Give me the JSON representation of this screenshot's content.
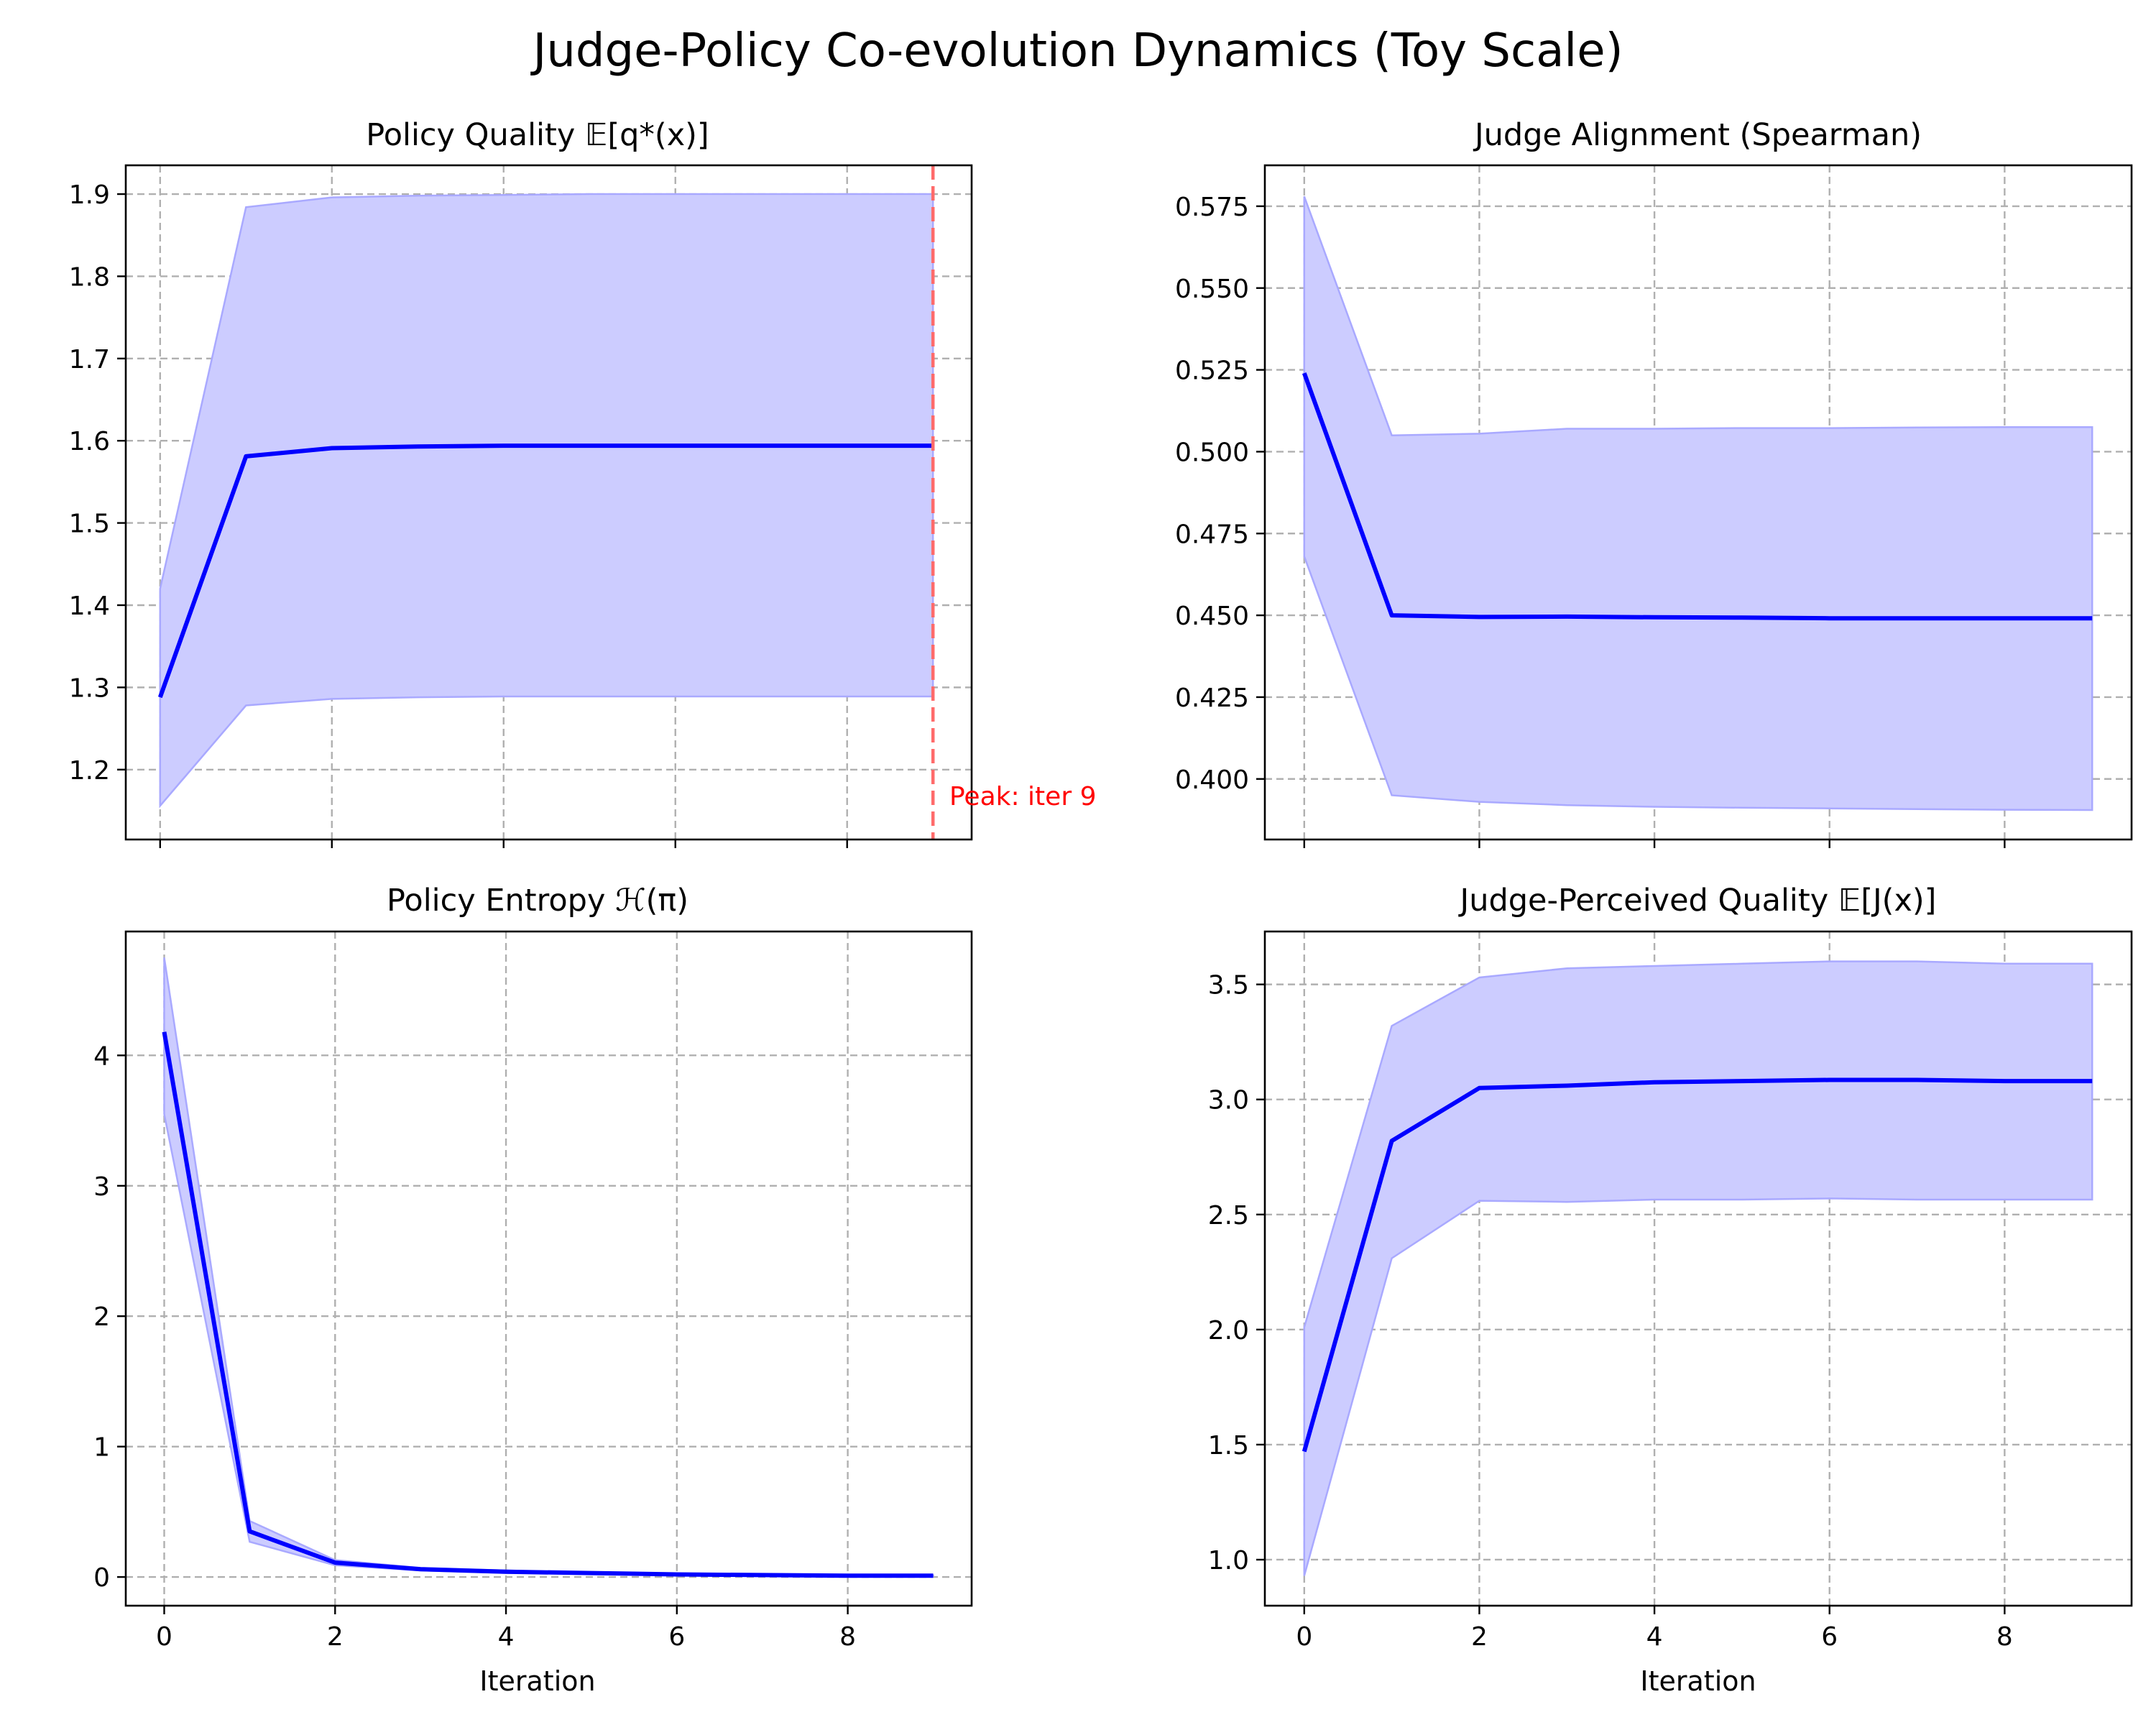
{
  "figure": {
    "suptitle": "Judge-Policy Co-evolution Dynamics (Toy Scale)",
    "colors": {
      "line": "#0000ff",
      "band_fill": "#ccccff",
      "band_edge": "#a9a9ff",
      "peak": "#ff0000"
    }
  },
  "chart_data": [
    {
      "type": "line",
      "title_text": "Policy Quality ",
      "title_math": "𝔼[q*(x)]",
      "xlabel": "",
      "ylabel": "",
      "x": [
        0,
        1,
        2,
        3,
        4,
        5,
        6,
        7,
        8,
        9
      ],
      "xlim": [
        -0.4,
        9.45
      ],
      "ylim": [
        1.115,
        1.935
      ],
      "xticks": [
        0,
        2,
        4,
        6,
        8
      ],
      "show_xtick_labels": false,
      "yticks": [
        1.2,
        1.3,
        1.4,
        1.5,
        1.6,
        1.7,
        1.8,
        1.9
      ],
      "ytick_labels": [
        "1.2",
        "1.3",
        "1.4",
        "1.5",
        "1.6",
        "1.7",
        "1.8",
        "1.9"
      ],
      "grid": true,
      "series": [
        {
          "mean": [
            1.288,
            1.581,
            1.591,
            1.593,
            1.594,
            1.594,
            1.594,
            1.594,
            1.594,
            1.594
          ],
          "upper": [
            1.42,
            1.884,
            1.896,
            1.898,
            1.899,
            1.9,
            1.9,
            1.9,
            1.9,
            1.9
          ],
          "lower": [
            1.156,
            1.278,
            1.286,
            1.288,
            1.289,
            1.289,
            1.289,
            1.289,
            1.289,
            1.289
          ]
        }
      ],
      "annotation": {
        "text": "Peak: iter 9",
        "x": 9
      }
    },
    {
      "type": "line",
      "title_text": "Judge Alignment (Spearman)",
      "title_math": "",
      "xlabel": "",
      "ylabel": "",
      "x": [
        0,
        1,
        2,
        3,
        4,
        5,
        6,
        7,
        8,
        9
      ],
      "xlim": [
        -0.45,
        9.45
      ],
      "ylim": [
        0.3815,
        0.5875
      ],
      "xticks": [
        0,
        2,
        4,
        6,
        8
      ],
      "show_xtick_labels": false,
      "yticks": [
        0.4,
        0.425,
        0.45,
        0.475,
        0.5,
        0.525,
        0.55,
        0.575
      ],
      "ytick_labels": [
        "0.400",
        "0.425",
        "0.450",
        "0.475",
        "0.500",
        "0.525",
        "0.550",
        "0.575"
      ],
      "grid": true,
      "series": [
        {
          "mean": [
            0.524,
            0.45,
            0.4495,
            0.4496,
            0.4494,
            0.4493,
            0.4491,
            0.4491,
            0.4491,
            0.4491
          ],
          "upper": [
            0.578,
            0.505,
            0.5055,
            0.507,
            0.507,
            0.5072,
            0.5072,
            0.5074,
            0.5075,
            0.5075
          ],
          "lower": [
            0.468,
            0.395,
            0.393,
            0.392,
            0.3915,
            0.3912,
            0.391,
            0.3908,
            0.3906,
            0.3905
          ]
        }
      ]
    },
    {
      "type": "line",
      "title_text": "Policy Entropy ",
      "title_math": "ℋ(π)",
      "xlabel": "Iteration",
      "ylabel": "",
      "x": [
        0,
        1,
        2,
        3,
        4,
        5,
        6,
        7,
        8,
        9
      ],
      "xlim": [
        -0.45,
        9.45
      ],
      "ylim": [
        -0.22,
        4.95
      ],
      "xticks": [
        0,
        2,
        4,
        6,
        8
      ],
      "show_xtick_labels": true,
      "xtick_labels": [
        "0",
        "2",
        "4",
        "6",
        "8"
      ],
      "yticks": [
        0,
        1,
        2,
        3,
        4
      ],
      "ytick_labels": [
        "0",
        "1",
        "2",
        "3",
        "4"
      ],
      "grid": true,
      "series": [
        {
          "mean": [
            4.18,
            0.35,
            0.11,
            0.06,
            0.04,
            0.03,
            0.02,
            0.015,
            0.01,
            0.01
          ],
          "upper": [
            4.75,
            0.43,
            0.13,
            0.07,
            0.05,
            0.035,
            0.025,
            0.02,
            0.015,
            0.012
          ],
          "lower": [
            3.55,
            0.27,
            0.09,
            0.05,
            0.03,
            0.025,
            0.015,
            0.01,
            0.008,
            0.008
          ]
        }
      ]
    },
    {
      "type": "line",
      "title_text": "Judge-Perceived Quality ",
      "title_math": "𝔼[J(x)]",
      "xlabel": "Iteration",
      "ylabel": "",
      "x": [
        0,
        1,
        2,
        3,
        4,
        5,
        6,
        7,
        8,
        9
      ],
      "xlim": [
        -0.45,
        9.45
      ],
      "ylim": [
        0.8,
        3.73
      ],
      "xticks": [
        0,
        2,
        4,
        6,
        8
      ],
      "show_xtick_labels": true,
      "xtick_labels": [
        "0",
        "2",
        "4",
        "6",
        "8"
      ],
      "yticks": [
        1.0,
        1.5,
        2.0,
        2.5,
        3.0,
        3.5
      ],
      "ytick_labels": [
        "1.0",
        "1.5",
        "2.0",
        "2.5",
        "3.0",
        "3.5"
      ],
      "grid": true,
      "series": [
        {
          "mean": [
            1.47,
            2.82,
            3.05,
            3.06,
            3.075,
            3.08,
            3.085,
            3.085,
            3.08,
            3.08
          ],
          "upper": [
            2.01,
            3.32,
            3.53,
            3.57,
            3.58,
            3.59,
            3.6,
            3.6,
            3.59,
            3.59
          ],
          "lower": [
            0.93,
            2.31,
            2.56,
            2.555,
            2.565,
            2.565,
            2.57,
            2.565,
            2.565,
            2.565
          ]
        }
      ]
    }
  ]
}
